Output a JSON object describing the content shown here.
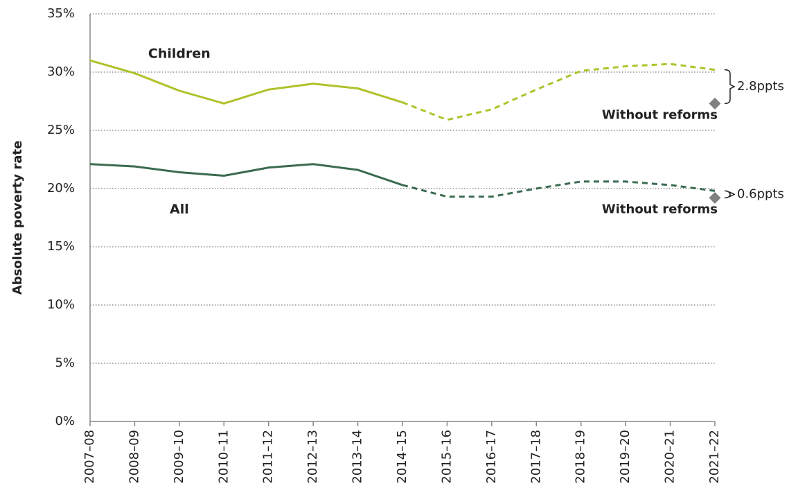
{
  "chart_data": {
    "type": "line",
    "y_label": "Absolute poverty rate",
    "categories": [
      "2007–08",
      "2008–09",
      "2009–10",
      "2010–11",
      "2011–12",
      "2012–13",
      "2013–14",
      "2014–15",
      "2015–16",
      "2016–17",
      "2017–18",
      "2018–19",
      "2019–20",
      "2020–21",
      "2021–22"
    ],
    "dashed_from": "2014–15",
    "series": [
      {
        "name": "Children",
        "color": "#afc22a",
        "values": [
          31.0,
          29.9,
          28.4,
          27.3,
          28.5,
          29.0,
          28.6,
          27.4,
          25.9,
          26.8,
          28.5,
          30.1,
          30.5,
          30.7,
          30.2
        ]
      },
      {
        "name": "All",
        "color": "#3b6b50",
        "values": [
          22.1,
          21.9,
          21.4,
          21.1,
          21.8,
          22.1,
          21.6,
          20.3,
          19.3,
          19.3,
          20.0,
          20.6,
          20.6,
          20.3,
          19.8
        ]
      }
    ],
    "without_reforms": [
      {
        "label": "Without reforms",
        "value": 27.3,
        "gap": "2.8ppts"
      },
      {
        "label": "Without reforms",
        "value": 19.2,
        "gap": "0.6ppts"
      }
    ],
    "marker_color": "#808080",
    "ylim": [
      0,
      35
    ],
    "yticks": [
      {
        "value": 0,
        "label": "0%"
      },
      {
        "value": 5,
        "label": "5%"
      },
      {
        "value": 10,
        "label": "10%"
      },
      {
        "value": 15,
        "label": "15%"
      },
      {
        "value": 20,
        "label": "20%"
      },
      {
        "value": 25,
        "label": "25%"
      },
      {
        "value": 30,
        "label": "30%"
      },
      {
        "value": 35,
        "label": "35%"
      }
    ],
    "grid": true
  }
}
